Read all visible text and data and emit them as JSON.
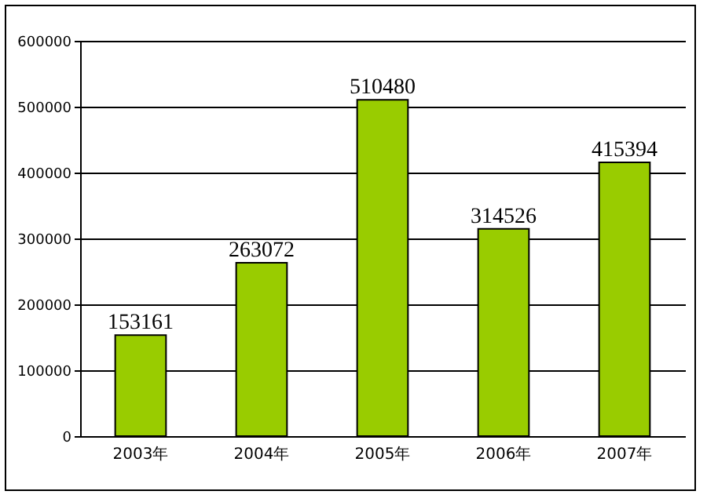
{
  "chart_data": {
    "type": "bar",
    "categories": [
      "2003年",
      "2004年",
      "2005年",
      "2006年",
      "2007年"
    ],
    "values": [
      153161,
      263072,
      510480,
      314526,
      415394
    ],
    "color": "#99cc00",
    "ylim": [
      0,
      600000
    ],
    "yticks": [
      0,
      100000,
      200000,
      300000,
      400000,
      500000,
      600000
    ],
    "grid": "y",
    "data_labels": true
  }
}
